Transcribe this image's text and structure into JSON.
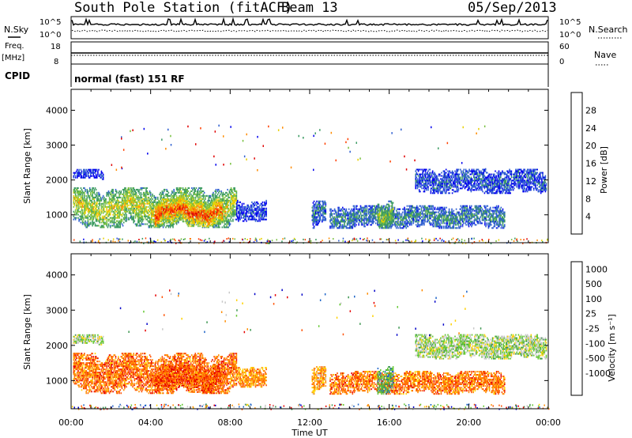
{
  "header": {
    "station": "South Pole Station (fitACF)",
    "beam": "Beam 13",
    "date": "05/Sep/2013"
  },
  "top_panels": {
    "nsky_label": "N.Sky",
    "nsky_ticks": [
      "10^5",
      "10^0"
    ],
    "nsearch_label": "N.Search",
    "nsearch_ticks": [
      "10^5",
      "10^0"
    ],
    "freq_label": "Freq.",
    "freq_unit": "[MHz]",
    "freq_ticks": [
      "18",
      "8"
    ],
    "nave_label": "Nave",
    "nave_ticks": [
      "60",
      "0"
    ],
    "cpid_label": "CPID",
    "cpid_text": "normal (fast) 151 RF"
  },
  "chart_data": [
    {
      "type": "heatmap",
      "name": "power",
      "ylabel": "Slant Range [km]",
      "yticks": [
        "1000",
        "2000",
        "3000",
        "4000"
      ],
      "ylim": [
        200,
        4600
      ],
      "xlim_hours": [
        0,
        24
      ],
      "colorbar_label": "Power [dB]",
      "colorbar_ticks": [
        "4",
        "8",
        "12",
        "16",
        "20",
        "24",
        "28"
      ],
      "colorbar_colors": [
        "#0000ee",
        "#2f5fd0",
        "#3a9a60",
        "#78c040",
        "#e8d000",
        "#ff8c00",
        "#ff4000",
        "#e00000"
      ],
      "regions": [
        {
          "t0": 0.1,
          "t1": 1.6,
          "r0": 2000,
          "r1": 2300,
          "level": 0.05
        },
        {
          "t0": 0.1,
          "t1": 8.3,
          "r0": 620,
          "r1": 1750,
          "level": 0.55
        },
        {
          "t0": 4.2,
          "t1": 7.6,
          "r0": 650,
          "r1": 1450,
          "level": 0.9
        },
        {
          "t0": 8.3,
          "t1": 9.8,
          "r0": 800,
          "r1": 1400,
          "level": 0.1
        },
        {
          "t0": 12.1,
          "t1": 12.8,
          "r0": 600,
          "r1": 1400,
          "level": 0.2
        },
        {
          "t0": 13.0,
          "t1": 21.8,
          "r0": 600,
          "r1": 1250,
          "level": 0.25
        },
        {
          "t0": 17.3,
          "t1": 23.9,
          "r0": 1600,
          "r1": 2300,
          "level": 0.15
        },
        {
          "t0": 15.4,
          "t1": 16.2,
          "r0": 600,
          "r1": 1400,
          "level": 0.45
        }
      ]
    },
    {
      "type": "heatmap",
      "name": "velocity",
      "ylabel": "Slant Range [km]",
      "yticks": [
        "1000",
        "2000",
        "3000",
        "4000"
      ],
      "ylim": [
        200,
        4600
      ],
      "xlim_hours": [
        0,
        24
      ],
      "xticks": [
        "00:00",
        "04:00",
        "08:00",
        "12:00",
        "16:00",
        "20:00",
        "00:00"
      ],
      "xlabel": "Time UT",
      "colorbar_label": "Velocity [m s⁻¹]",
      "colorbar_ticks": [
        "1000",
        "500",
        "100",
        "25",
        "-25",
        "-100",
        "-500",
        "-1000"
      ],
      "colorbar_colors": [
        "#0000c8",
        "#1e64c8",
        "#3c9650",
        "#64c832",
        "#c8c8c8",
        "#ffd200",
        "#ff8c00",
        "#ff5000",
        "#e60000"
      ],
      "regions": [
        {
          "t0": 0.1,
          "t1": 1.6,
          "r0": 2000,
          "r1": 2300,
          "level": 0.45
        },
        {
          "t0": 0.1,
          "t1": 8.3,
          "r0": 620,
          "r1": 1750,
          "level": 0.82
        },
        {
          "t0": 4.2,
          "t1": 7.6,
          "r0": 650,
          "r1": 1450,
          "level": 0.85
        },
        {
          "t0": 8.3,
          "t1": 9.8,
          "r0": 800,
          "r1": 1400,
          "level": 0.75
        },
        {
          "t0": 12.1,
          "t1": 12.8,
          "r0": 600,
          "r1": 1400,
          "level": 0.7
        },
        {
          "t0": 13.0,
          "t1": 21.8,
          "r0": 600,
          "r1": 1250,
          "level": 0.8
        },
        {
          "t0": 17.3,
          "t1": 23.9,
          "r0": 1600,
          "r1": 2300,
          "level": 0.45
        },
        {
          "t0": 15.4,
          "t1": 16.2,
          "r0": 600,
          "r1": 1400,
          "level": 0.3
        }
      ]
    }
  ]
}
